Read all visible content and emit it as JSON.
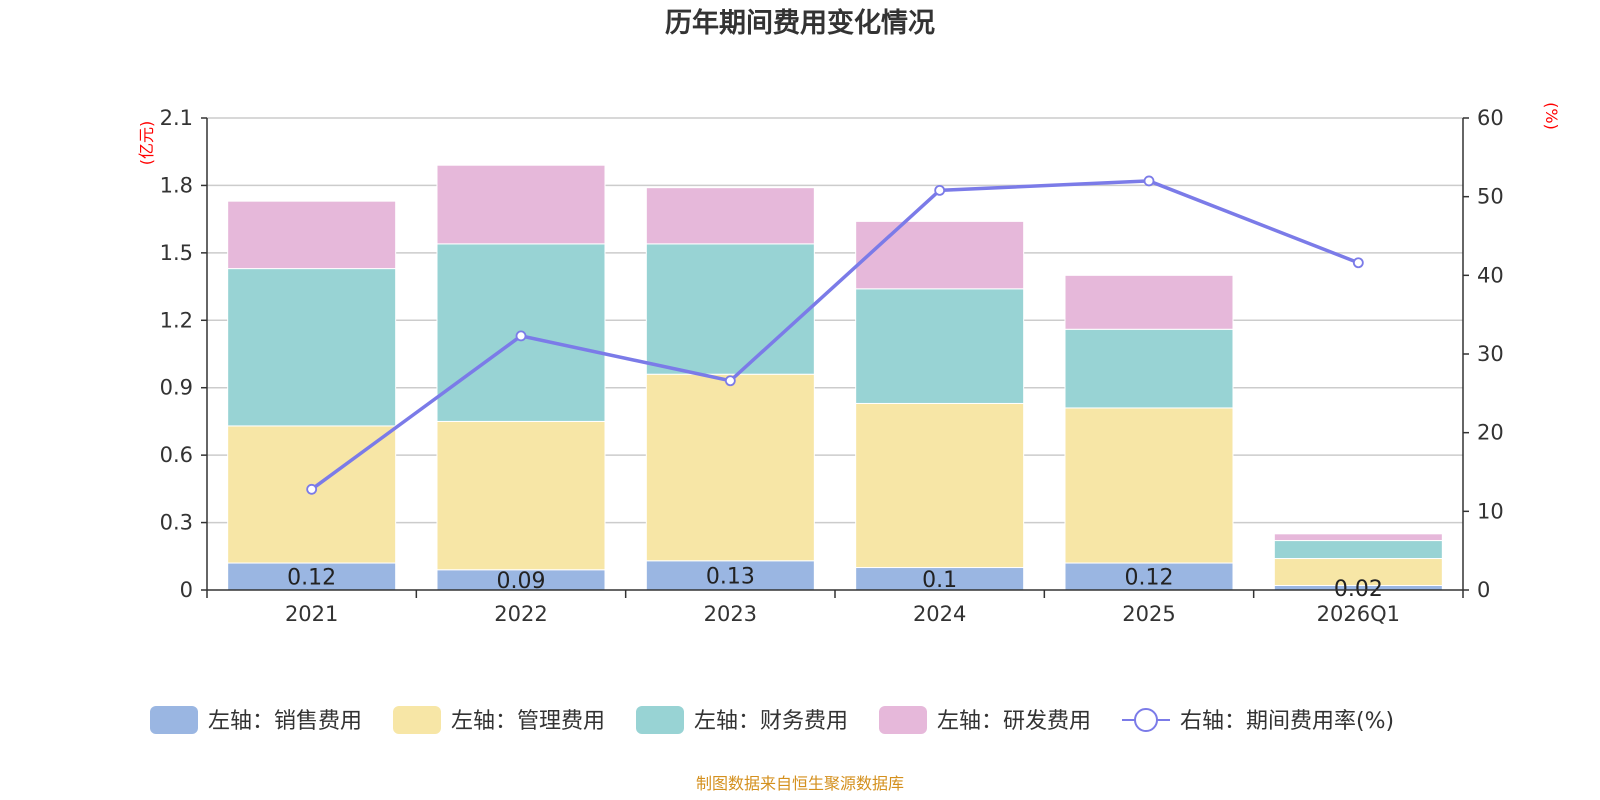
{
  "chart_data": {
    "type": "bar",
    "stacked": true,
    "title": "历年期间费用变化情况",
    "categories": [
      "2021",
      "2022",
      "2023",
      "2024",
      "2025",
      "2026Q1"
    ],
    "left_axis": {
      "unit": "(亿元)",
      "ylim": [
        0,
        2.1
      ],
      "ticks": [
        "0",
        "0.3",
        "0.6",
        "0.9",
        "1.2",
        "1.5",
        "1.8",
        "2.1"
      ]
    },
    "right_axis": {
      "unit": "(%)",
      "ylim": [
        0,
        60
      ],
      "ticks": [
        "0",
        "10",
        "20",
        "30",
        "40",
        "50",
        "60"
      ]
    },
    "series": [
      {
        "name": "左轴：销售费用",
        "color": "#9ab6e2",
        "values": [
          0.12,
          0.09,
          0.13,
          0.1,
          0.12,
          0.02
        ],
        "labels": [
          "0.12",
          "0.09",
          "0.13",
          "0.1",
          "0.12",
          "0.02"
        ]
      },
      {
        "name": "左轴：管理费用",
        "color": "#f7e6a6",
        "values": [
          0.61,
          0.66,
          0.83,
          0.73,
          0.69,
          0.12
        ]
      },
      {
        "name": "左轴：财务费用",
        "color": "#98d3d4",
        "values": [
          0.7,
          0.79,
          0.58,
          0.51,
          0.35,
          0.08
        ]
      },
      {
        "name": "左轴：研发费用",
        "color": "#e6b8da",
        "values": [
          0.3,
          0.35,
          0.25,
          0.3,
          0.24,
          0.03
        ]
      }
    ],
    "line": {
      "name": "右轴：期间费用率(%)",
      "color": "#7b7be8",
      "values": [
        12.8,
        32.3,
        26.6,
        50.8,
        52,
        41.6
      ]
    },
    "legend_position": "bottom",
    "grid": true
  },
  "source": "制图数据来自恒生聚源数据库"
}
